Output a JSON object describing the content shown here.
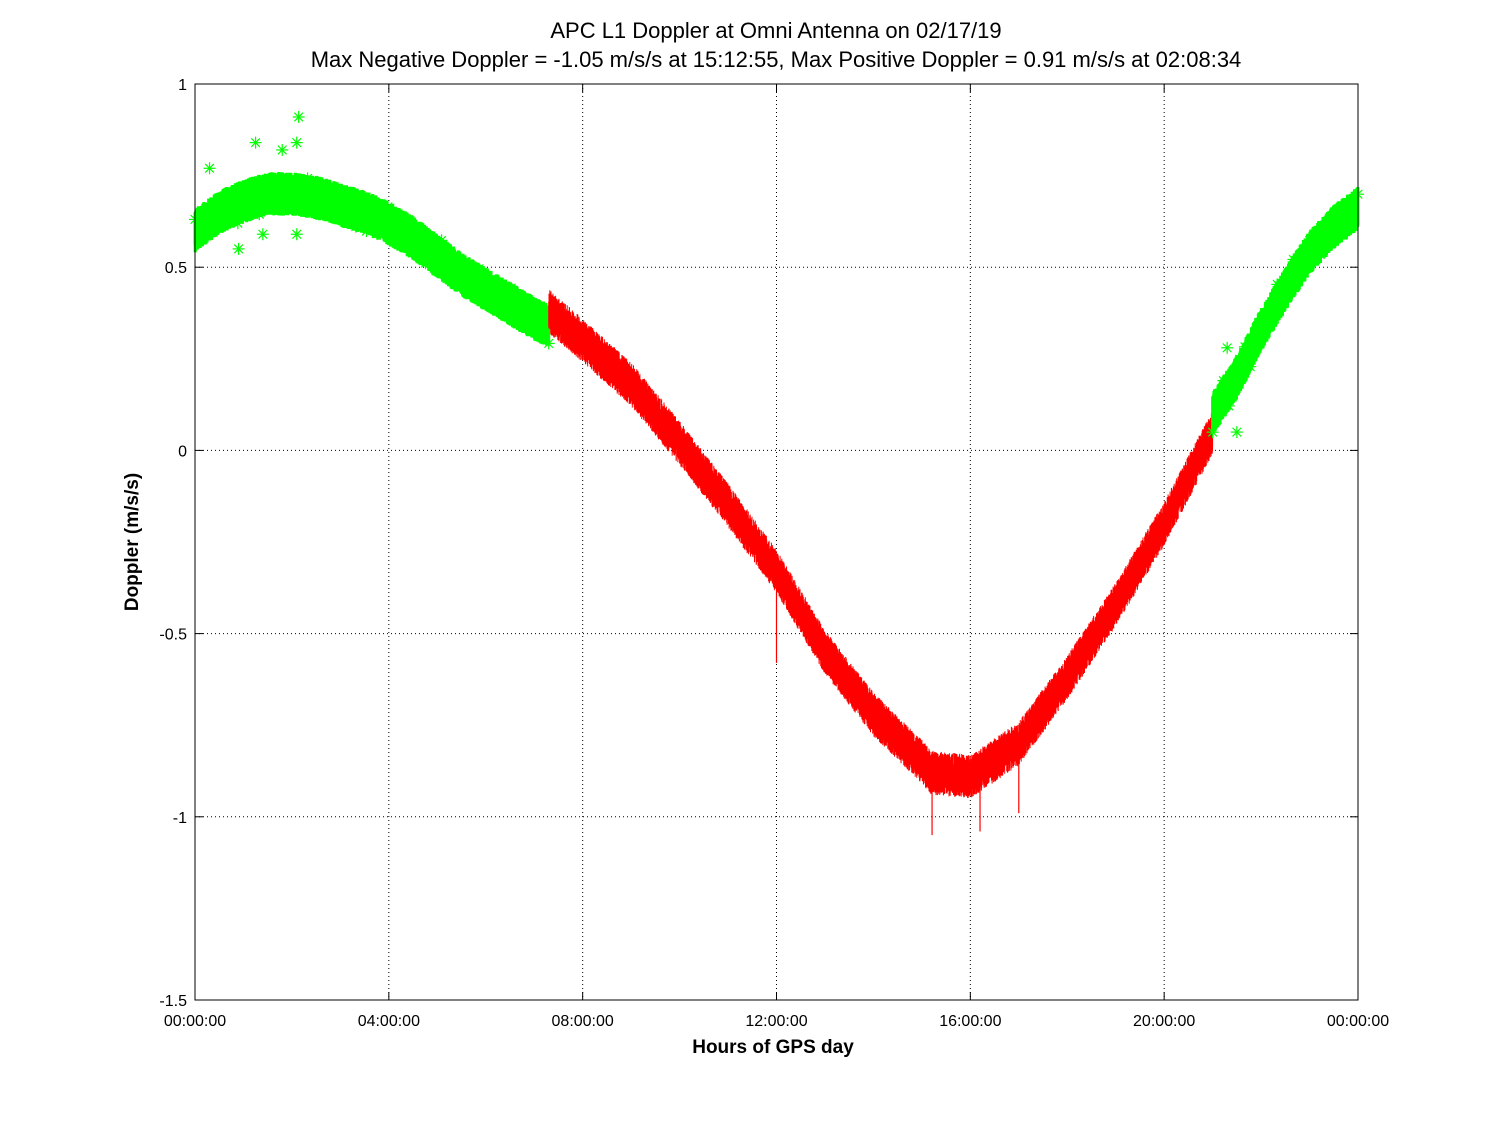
{
  "chart_data": {
    "type": "line",
    "title": "APC  L1 Doppler at Omni Antenna on 02/17/19",
    "subtitle": "Max Negative Doppler = -1.05 m/s/s  at 15:12:55,   Max Positive Doppler = 0.91 m/s/s  at 02:08:34",
    "xlabel": "Hours of GPS day",
    "ylabel": "Doppler (m/s/s)",
    "xlim": [
      0,
      24
    ],
    "ylim": [
      -1.5,
      1
    ],
    "x_ticks": [
      0,
      4,
      8,
      12,
      16,
      20,
      24
    ],
    "x_tick_labels": [
      "00:00:00",
      "04:00:00",
      "08:00:00",
      "12:00:00",
      "16:00:00",
      "20:00:00",
      "00:00:00"
    ],
    "y_ticks": [
      -1.5,
      -1,
      -0.5,
      0,
      0.5,
      1
    ],
    "y_tick_labels": [
      "-1.5",
      "-1",
      "-0.5",
      "0",
      "0.5",
      "1"
    ],
    "grid": true,
    "noise_band": 0.05,
    "series": [
      {
        "style": "markers",
        "marker": "asterisk",
        "color": "#00ff00",
        "x": [
          0.0,
          0.5,
          1.0,
          1.5,
          2.0,
          2.5,
          3.0,
          3.5,
          4.0,
          4.5,
          5.0,
          5.5,
          6.0,
          6.5,
          7.0,
          7.3
        ],
        "y": [
          0.6,
          0.65,
          0.68,
          0.7,
          0.7,
          0.69,
          0.67,
          0.65,
          0.62,
          0.58,
          0.53,
          0.48,
          0.44,
          0.4,
          0.36,
          0.34
        ],
        "outliers": [
          {
            "x": 2.14,
            "y": 0.91
          },
          {
            "x": 1.25,
            "y": 0.84
          },
          {
            "x": 2.1,
            "y": 0.84
          },
          {
            "x": 1.8,
            "y": 0.82
          },
          {
            "x": 0.3,
            "y": 0.77
          },
          {
            "x": 0.9,
            "y": 0.55
          },
          {
            "x": 1.4,
            "y": 0.59
          },
          {
            "x": 2.1,
            "y": 0.59
          },
          {
            "x": 21.5,
            "y": 0.05
          },
          {
            "x": 21.3,
            "y": 0.28
          }
        ]
      },
      {
        "style": "line",
        "color": "#ff0000",
        "x": [
          7.3,
          8.0,
          9.0,
          10.0,
          11.0,
          12.0,
          13.0,
          14.0,
          15.0,
          15.2,
          16.0,
          17.0,
          18.0,
          19.0,
          20.0,
          21.0
        ],
        "y": [
          0.38,
          0.3,
          0.18,
          0.02,
          -0.15,
          -0.33,
          -0.55,
          -0.72,
          -0.85,
          -0.88,
          -0.89,
          -0.8,
          -0.62,
          -0.42,
          -0.2,
          0.05
        ],
        "outliers": [
          {
            "x": 15.21,
            "y": -1.05
          },
          {
            "x": 16.2,
            "y": -1.04
          },
          {
            "x": 17.0,
            "y": -0.99
          },
          {
            "x": 12.0,
            "y": -0.58
          },
          {
            "x": 17.5,
            "y": -0.7
          }
        ]
      },
      {
        "style": "markers",
        "marker": "asterisk",
        "color": "#00ff00",
        "x": [
          21.0,
          21.5,
          22.0,
          22.5,
          23.0,
          23.5,
          24.0
        ],
        "y": [
          0.1,
          0.2,
          0.33,
          0.44,
          0.54,
          0.61,
          0.66
        ],
        "outliers": []
      }
    ]
  }
}
